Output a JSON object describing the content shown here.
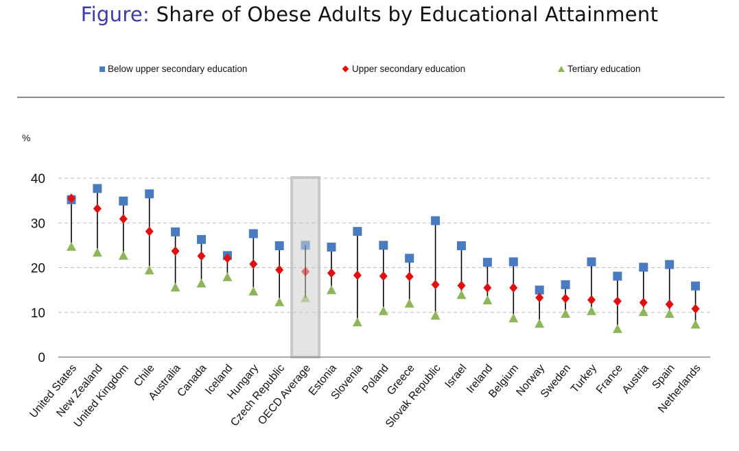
{
  "title": {
    "prefix": "Figure:",
    "text": "Share of Obese Adults by Educational Attainment"
  },
  "legend": [
    {
      "label": "Below upper secondary education",
      "marker": "square",
      "color": "#4a7ac0"
    },
    {
      "label": "Upper secondary education",
      "marker": "diamond",
      "color": "#e01010"
    },
    {
      "label": "Tertiary education",
      "marker": "triangle",
      "color": "#8fb55a"
    }
  ],
  "chart_data": {
    "type": "scatter",
    "unit_label": "%",
    "ylim": [
      0,
      40
    ],
    "yticks": [
      0,
      10,
      20,
      30,
      40
    ],
    "grid": true,
    "legend_position": "top",
    "highlight_category": "OECD Average",
    "categories": [
      "United States",
      "New Zealand",
      "United Kingdom",
      "Chile",
      "Australia",
      "Canada",
      "Iceland",
      "Hungary",
      "Czech Republic",
      "OECD Average",
      "Estonia",
      "Slovenia",
      "Poland",
      "Greece",
      "Slovak Republic",
      "Israel",
      "Ireland",
      "Belgium",
      "Norway",
      "Sweden",
      "Turkey",
      "France",
      "Austria",
      "Spain",
      "Netherlands"
    ],
    "series": [
      {
        "name": "Below upper secondary education",
        "marker": "square",
        "color": "#4a7ac0",
        "values": [
          35.2,
          37.7,
          34.9,
          36.5,
          28.0,
          26.3,
          22.7,
          27.6,
          24.9,
          25.0,
          24.6,
          28.1,
          25.0,
          22.1,
          30.5,
          24.9,
          21.2,
          21.3,
          15.0,
          16.2,
          21.3,
          18.1,
          20.1,
          20.7,
          15.9
        ]
      },
      {
        "name": "Upper secondary education",
        "marker": "diamond",
        "color": "#e01010",
        "values": [
          35.5,
          33.2,
          30.9,
          28.1,
          23.7,
          22.6,
          22.1,
          20.8,
          19.5,
          19.1,
          18.8,
          18.3,
          18.1,
          18.0,
          16.2,
          16.0,
          15.5,
          15.5,
          13.3,
          13.1,
          12.8,
          12.5,
          12.2,
          11.8,
          10.8
        ]
      },
      {
        "name": "Tertiary education",
        "marker": "triangle",
        "color": "#8fb55a",
        "values": [
          24.7,
          23.4,
          22.7,
          19.4,
          15.6,
          16.5,
          17.9,
          14.7,
          12.3,
          13.2,
          15.0,
          7.8,
          10.3,
          12.0,
          9.3,
          13.9,
          12.7,
          8.7,
          7.5,
          9.7,
          10.3,
          6.3,
          10.1,
          9.7,
          7.3
        ]
      }
    ]
  }
}
